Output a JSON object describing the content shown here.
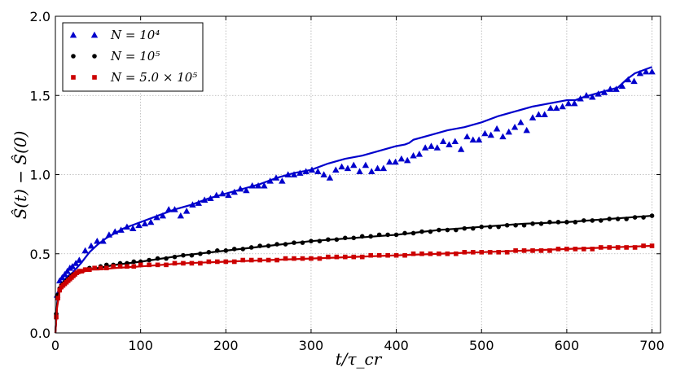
{
  "chart_data": {
    "type": "scatter",
    "xlabel": "t/τ_cr",
    "ylabel": "Ŝ(t) − Ŝ(0)",
    "xlim": [
      0,
      710
    ],
    "ylim": [
      0,
      2.0
    ],
    "xticks": [
      0,
      100,
      200,
      300,
      400,
      500,
      600,
      700
    ],
    "yticks": [
      0.0,
      0.5,
      1.0,
      1.5,
      2.0
    ],
    "xtick_labels": [
      "0",
      "100",
      "200",
      "300",
      "400",
      "500",
      "600",
      "700"
    ],
    "ytick_labels": [
      "0.0",
      "0.5",
      "1.0",
      "1.5",
      "2.0"
    ],
    "grid": true,
    "legend_position": "top-left",
    "series": [
      {
        "name": "N=10^4",
        "legend_label": "N = 10⁴",
        "color": "#0000cc",
        "marker": "triangle",
        "points_x": [
          2,
          5,
          8,
          11,
          14,
          17,
          20,
          24,
          28,
          35,
          42,
          49,
          56,
          63,
          70,
          77,
          84,
          91,
          98,
          105,
          112,
          119,
          126,
          133,
          140,
          147,
          154,
          161,
          168,
          175,
          182,
          189,
          196,
          203,
          210,
          217,
          224,
          231,
          238,
          245,
          252,
          259,
          266,
          273,
          280,
          287,
          294,
          301,
          308,
          315,
          322,
          329,
          336,
          343,
          350,
          357,
          364,
          371,
          378,
          385,
          392,
          399,
          406,
          413,
          420,
          427,
          434,
          441,
          448,
          455,
          462,
          469,
          476,
          483,
          490,
          497,
          504,
          511,
          518,
          525,
          532,
          539,
          546,
          553,
          560,
          567,
          574,
          581,
          588,
          595,
          602,
          609,
          616,
          623,
          630,
          637,
          644,
          651,
          658,
          665,
          672,
          679,
          686,
          693,
          700
        ],
        "points_y": [
          0.24,
          0.33,
          0.35,
          0.37,
          0.39,
          0.41,
          0.42,
          0.44,
          0.46,
          0.52,
          0.55,
          0.58,
          0.58,
          0.62,
          0.64,
          0.65,
          0.67,
          0.66,
          0.68,
          0.69,
          0.7,
          0.73,
          0.74,
          0.78,
          0.78,
          0.74,
          0.77,
          0.81,
          0.82,
          0.84,
          0.85,
          0.87,
          0.88,
          0.87,
          0.89,
          0.91,
          0.9,
          0.93,
          0.93,
          0.93,
          0.96,
          0.98,
          0.96,
          1.0,
          1.0,
          1.01,
          1.02,
          1.03,
          1.02,
          1.0,
          0.98,
          1.03,
          1.05,
          1.04,
          1.06,
          1.02,
          1.06,
          1.02,
          1.04,
          1.04,
          1.08,
          1.08,
          1.1,
          1.09,
          1.12,
          1.13,
          1.17,
          1.18,
          1.17,
          1.21,
          1.19,
          1.21,
          1.16,
          1.24,
          1.22,
          1.22,
          1.26,
          1.25,
          1.29,
          1.24,
          1.27,
          1.3,
          1.33,
          1.28,
          1.36,
          1.38,
          1.38,
          1.42,
          1.42,
          1.43,
          1.45,
          1.45,
          1.48,
          1.5,
          1.49,
          1.51,
          1.52,
          1.54,
          1.54,
          1.56,
          1.6,
          1.59,
          1.64,
          1.65,
          1.65
        ],
        "line_x": [
          0,
          3,
          6,
          10,
          15,
          20,
          25,
          30,
          40,
          50,
          60,
          70,
          80,
          90,
          100,
          120,
          140,
          160,
          180,
          200,
          220,
          240,
          260,
          280,
          300,
          320,
          340,
          360,
          380,
          400,
          410,
          415,
          420,
          440,
          460,
          480,
          500,
          520,
          540,
          560,
          580,
          600,
          610,
          620,
          640,
          660,
          670,
          680,
          690,
          700
        ],
        "line_y": [
          0,
          0.26,
          0.3,
          0.33,
          0.36,
          0.38,
          0.41,
          0.44,
          0.51,
          0.56,
          0.6,
          0.63,
          0.66,
          0.68,
          0.7,
          0.74,
          0.78,
          0.81,
          0.85,
          0.88,
          0.91,
          0.94,
          0.98,
          1.01,
          1.03,
          1.07,
          1.1,
          1.12,
          1.15,
          1.18,
          1.19,
          1.2,
          1.22,
          1.25,
          1.28,
          1.3,
          1.33,
          1.37,
          1.4,
          1.43,
          1.45,
          1.47,
          1.47,
          1.49,
          1.52,
          1.55,
          1.6,
          1.64,
          1.66,
          1.68
        ]
      },
      {
        "name": "N=10^5",
        "legend_label": "N = 10⁵",
        "color": "#000000",
        "marker": "circle",
        "points_x": [
          1,
          3,
          5,
          7,
          9,
          11,
          13,
          15,
          17,
          19,
          21,
          23,
          25,
          28,
          31,
          35,
          40,
          46,
          53,
          60,
          68,
          76,
          84,
          92,
          100,
          110,
          120,
          130,
          140,
          150,
          160,
          170,
          180,
          190,
          200,
          210,
          220,
          230,
          240,
          250,
          260,
          270,
          280,
          290,
          300,
          310,
          320,
          330,
          340,
          350,
          360,
          370,
          380,
          390,
          400,
          410,
          420,
          430,
          440,
          450,
          460,
          470,
          480,
          490,
          500,
          510,
          520,
          530,
          540,
          550,
          560,
          570,
          580,
          590,
          600,
          610,
          620,
          630,
          640,
          650,
          660,
          670,
          680,
          690,
          700
        ],
        "points_y": [
          0.12,
          0.24,
          0.28,
          0.3,
          0.31,
          0.32,
          0.33,
          0.34,
          0.35,
          0.36,
          0.37,
          0.37,
          0.38,
          0.39,
          0.39,
          0.4,
          0.41,
          0.41,
          0.42,
          0.43,
          0.43,
          0.44,
          0.44,
          0.45,
          0.45,
          0.46,
          0.47,
          0.47,
          0.48,
          0.49,
          0.49,
          0.5,
          0.51,
          0.52,
          0.52,
          0.53,
          0.53,
          0.54,
          0.55,
          0.55,
          0.56,
          0.56,
          0.57,
          0.57,
          0.58,
          0.58,
          0.59,
          0.59,
          0.6,
          0.6,
          0.61,
          0.61,
          0.62,
          0.62,
          0.62,
          0.63,
          0.63,
          0.64,
          0.64,
          0.65,
          0.65,
          0.65,
          0.66,
          0.66,
          0.67,
          0.67,
          0.67,
          0.68,
          0.68,
          0.68,
          0.69,
          0.69,
          0.7,
          0.7,
          0.7,
          0.7,
          0.71,
          0.71,
          0.71,
          0.72,
          0.72,
          0.72,
          0.73,
          0.73,
          0.74
        ],
        "line_x": [
          0,
          2,
          5,
          10,
          15,
          20,
          25,
          30,
          40,
          50,
          70,
          100,
          150,
          200,
          250,
          300,
          350,
          400,
          450,
          500,
          550,
          600,
          650,
          700
        ],
        "line_y": [
          0,
          0.18,
          0.28,
          0.31,
          0.34,
          0.36,
          0.38,
          0.39,
          0.4,
          0.41,
          0.43,
          0.45,
          0.49,
          0.52,
          0.55,
          0.58,
          0.6,
          0.62,
          0.65,
          0.67,
          0.69,
          0.7,
          0.72,
          0.74
        ]
      },
      {
        "name": "N=5.0x10^5",
        "legend_label": "N = 5.0 × 10⁵",
        "color": "#cc0000",
        "marker": "square",
        "points_x": [
          1,
          3,
          5,
          7,
          9,
          11,
          13,
          15,
          17,
          19,
          21,
          23,
          25,
          28,
          31,
          35,
          40,
          46,
          53,
          60,
          68,
          76,
          84,
          92,
          100,
          110,
          120,
          130,
          140,
          150,
          160,
          170,
          180,
          190,
          200,
          210,
          220,
          230,
          240,
          250,
          260,
          270,
          280,
          290,
          300,
          310,
          320,
          330,
          340,
          350,
          360,
          370,
          380,
          390,
          400,
          410,
          420,
          430,
          440,
          450,
          460,
          470,
          480,
          490,
          500,
          510,
          520,
          530,
          540,
          550,
          560,
          570,
          580,
          590,
          600,
          610,
          620,
          630,
          640,
          650,
          660,
          670,
          680,
          690,
          700
        ],
        "points_y": [
          0.1,
          0.22,
          0.27,
          0.29,
          0.3,
          0.31,
          0.32,
          0.33,
          0.34,
          0.35,
          0.36,
          0.37,
          0.38,
          0.39,
          0.39,
          0.4,
          0.4,
          0.41,
          0.41,
          0.41,
          0.42,
          0.42,
          0.42,
          0.42,
          0.43,
          0.43,
          0.43,
          0.43,
          0.44,
          0.44,
          0.44,
          0.44,
          0.45,
          0.45,
          0.45,
          0.45,
          0.46,
          0.46,
          0.46,
          0.46,
          0.46,
          0.47,
          0.47,
          0.47,
          0.47,
          0.47,
          0.48,
          0.48,
          0.48,
          0.48,
          0.48,
          0.49,
          0.49,
          0.49,
          0.49,
          0.49,
          0.5,
          0.5,
          0.5,
          0.5,
          0.5,
          0.5,
          0.51,
          0.51,
          0.51,
          0.51,
          0.51,
          0.51,
          0.52,
          0.52,
          0.52,
          0.52,
          0.52,
          0.53,
          0.53,
          0.53,
          0.53,
          0.53,
          0.54,
          0.54,
          0.54,
          0.54,
          0.54,
          0.55,
          0.55
        ],
        "line_x": [
          0,
          2,
          5,
          10,
          15,
          20,
          25,
          30,
          40,
          50,
          70,
          100,
          150,
          200,
          250,
          300,
          350,
          400,
          450,
          500,
          550,
          600,
          650,
          700
        ],
        "line_y": [
          0,
          0.16,
          0.26,
          0.3,
          0.33,
          0.35,
          0.37,
          0.38,
          0.4,
          0.4,
          0.41,
          0.42,
          0.44,
          0.45,
          0.46,
          0.47,
          0.48,
          0.49,
          0.5,
          0.51,
          0.52,
          0.53,
          0.54,
          0.55
        ]
      }
    ]
  }
}
